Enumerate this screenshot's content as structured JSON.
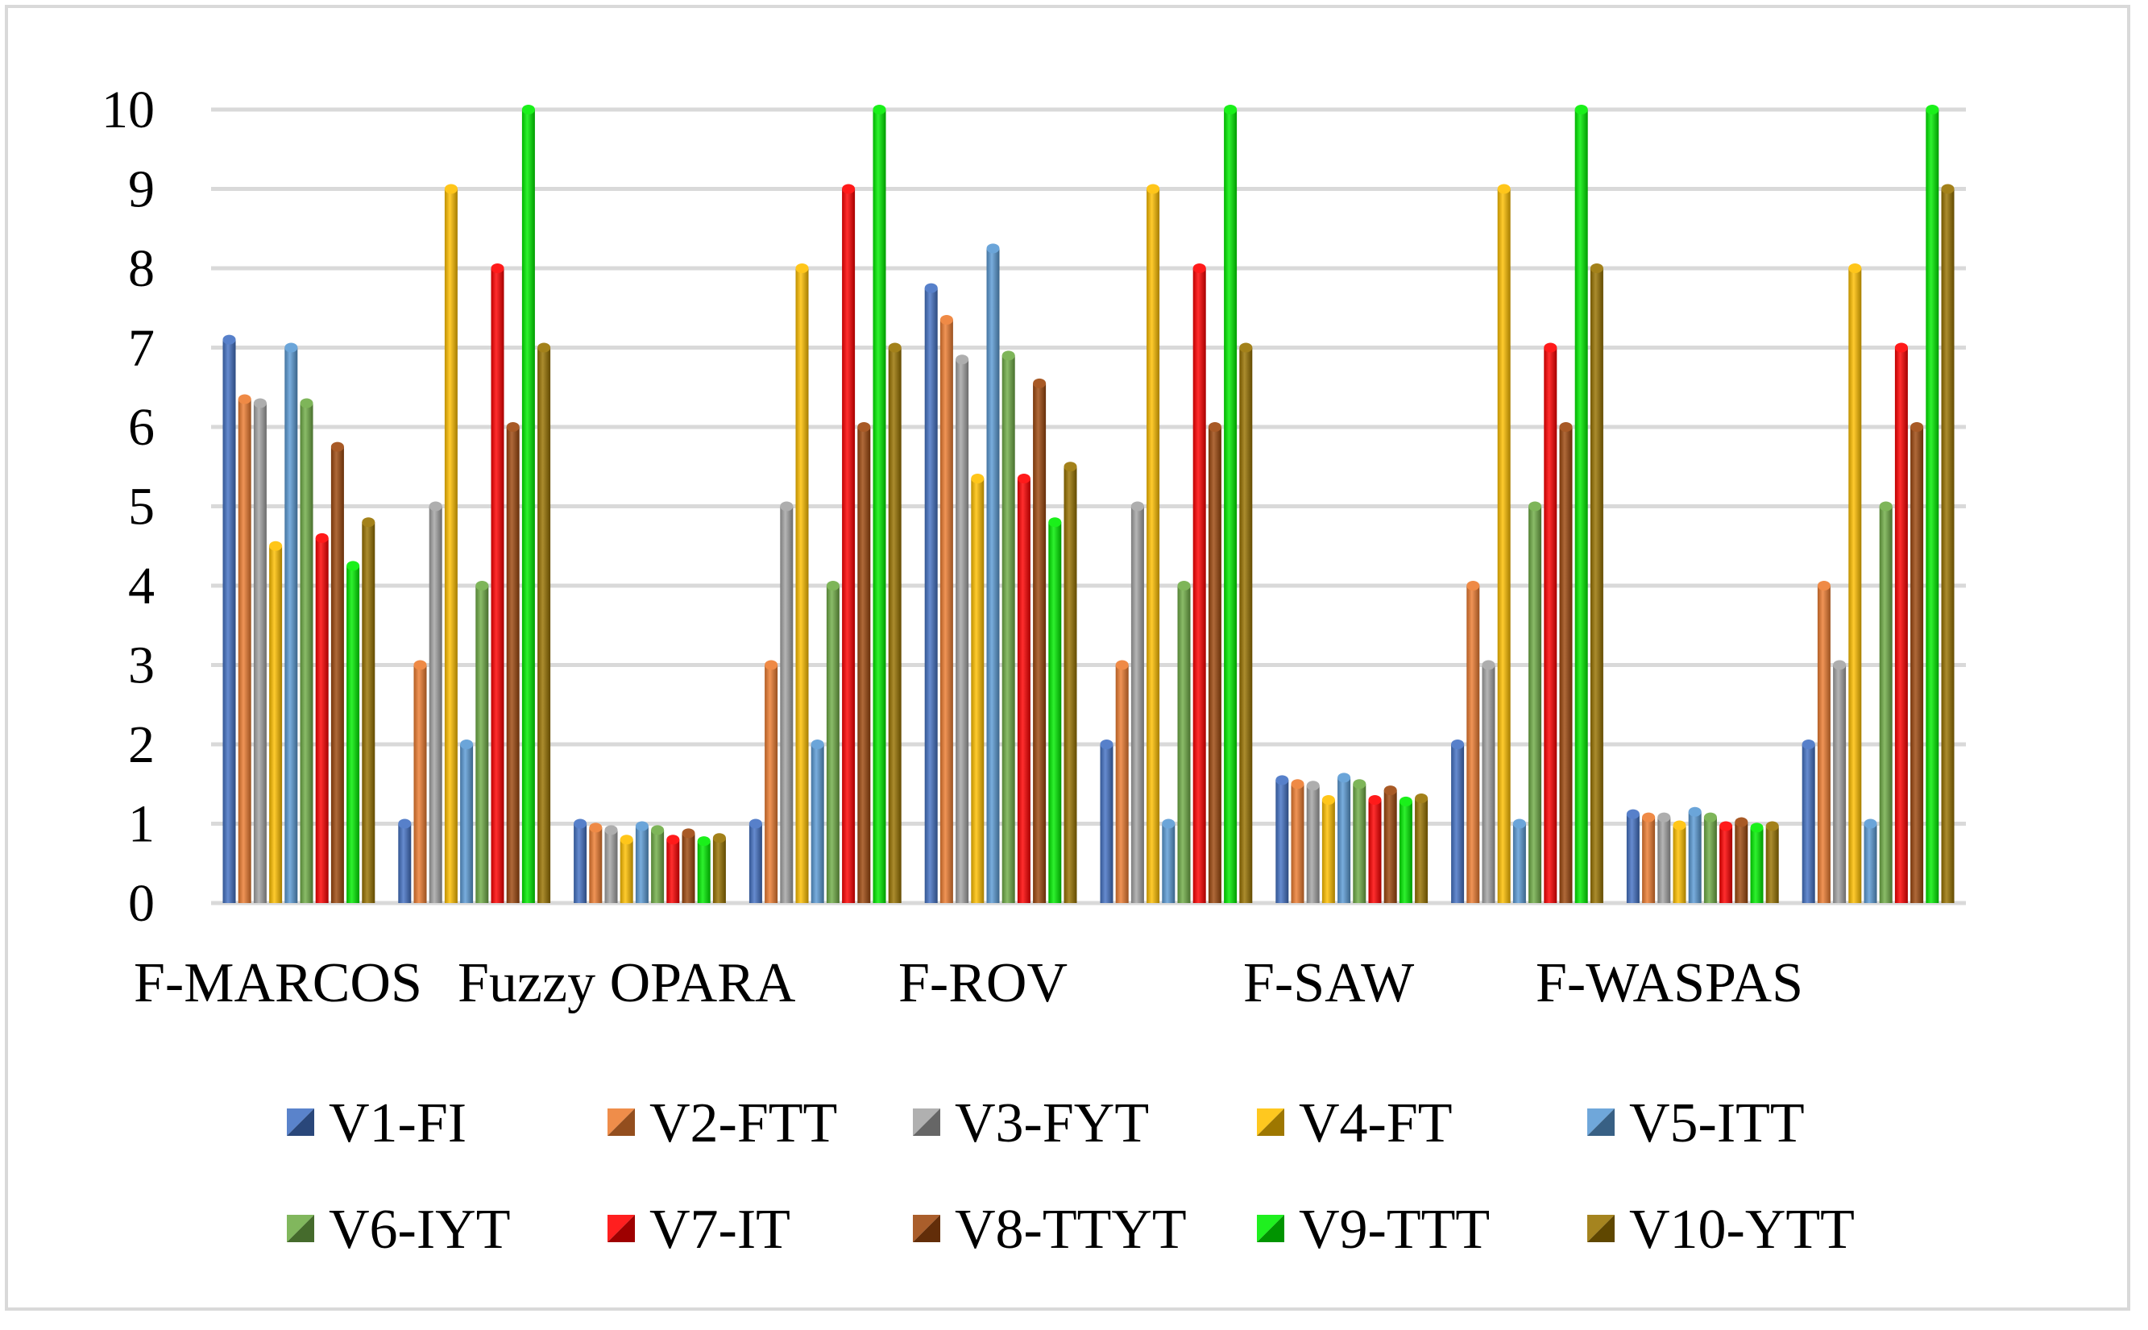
{
  "chart_data": {
    "type": "bar",
    "title": "",
    "xlabel": "",
    "ylabel": "",
    "ylim": [
      0,
      10
    ],
    "yticks": [
      0,
      1,
      2,
      3,
      4,
      5,
      6,
      7,
      8,
      9,
      10
    ],
    "grid": true,
    "legend_position": "bottom",
    "groups": [
      "F-MARCOS",
      "",
      "Fuzzy OPARA",
      "",
      "F-ROV",
      "",
      "F-SAW",
      "",
      "F-WASPAS",
      ""
    ],
    "category_labels": [
      "F-MARCOS",
      "Fuzzy OPARA",
      "F-ROV",
      "F-SAW",
      "F-WASPAS"
    ],
    "series": [
      {
        "name": "V1-FI",
        "color": "#4472c4",
        "values": [
          7.1,
          1,
          1,
          1,
          7.75,
          2,
          1.55,
          2,
          1.12,
          2
        ]
      },
      {
        "name": "V2-FTT",
        "color": "#ed7d31",
        "values": [
          6.35,
          3,
          0.95,
          3,
          7.35,
          3,
          1.5,
          4,
          1.08,
          4
        ]
      },
      {
        "name": "V3-FYT",
        "color": "#a5a5a5",
        "values": [
          6.3,
          5,
          0.92,
          5,
          6.85,
          5,
          1.48,
          3,
          1.08,
          3
        ]
      },
      {
        "name": "V4-FT",
        "color": "#ffc000",
        "values": [
          4.5,
          9,
          0.8,
          8,
          5.35,
          9,
          1.3,
          9,
          0.98,
          8
        ]
      },
      {
        "name": "V5-ITT",
        "color": "#5b9bd5",
        "values": [
          7,
          2,
          0.97,
          2,
          8.25,
          1,
          1.58,
          1,
          1.15,
          1
        ]
      },
      {
        "name": "V6-IYT",
        "color": "#70ad47",
        "values": [
          6.3,
          4,
          0.92,
          4,
          6.9,
          4,
          1.5,
          5,
          1.08,
          5
        ]
      },
      {
        "name": "V7-IT",
        "color": "#ff0000",
        "values": [
          4.6,
          8,
          0.8,
          9,
          5.35,
          8,
          1.3,
          7,
          0.97,
          7
        ]
      },
      {
        "name": "V8-TTYT",
        "color": "#9e480e",
        "values": [
          5.75,
          6,
          0.88,
          6,
          6.55,
          6,
          1.42,
          6,
          1.02,
          6
        ]
      },
      {
        "name": "V9-TTT",
        "color": "#00ee00",
        "values": [
          4.25,
          10,
          0.78,
          10,
          4.8,
          10,
          1.28,
          10,
          0.95,
          10
        ]
      },
      {
        "name": "V10-YTT",
        "color": "#997300",
        "values": [
          4.8,
          7,
          0.82,
          7,
          5.5,
          7,
          1.32,
          8,
          0.97,
          9
        ]
      }
    ]
  }
}
